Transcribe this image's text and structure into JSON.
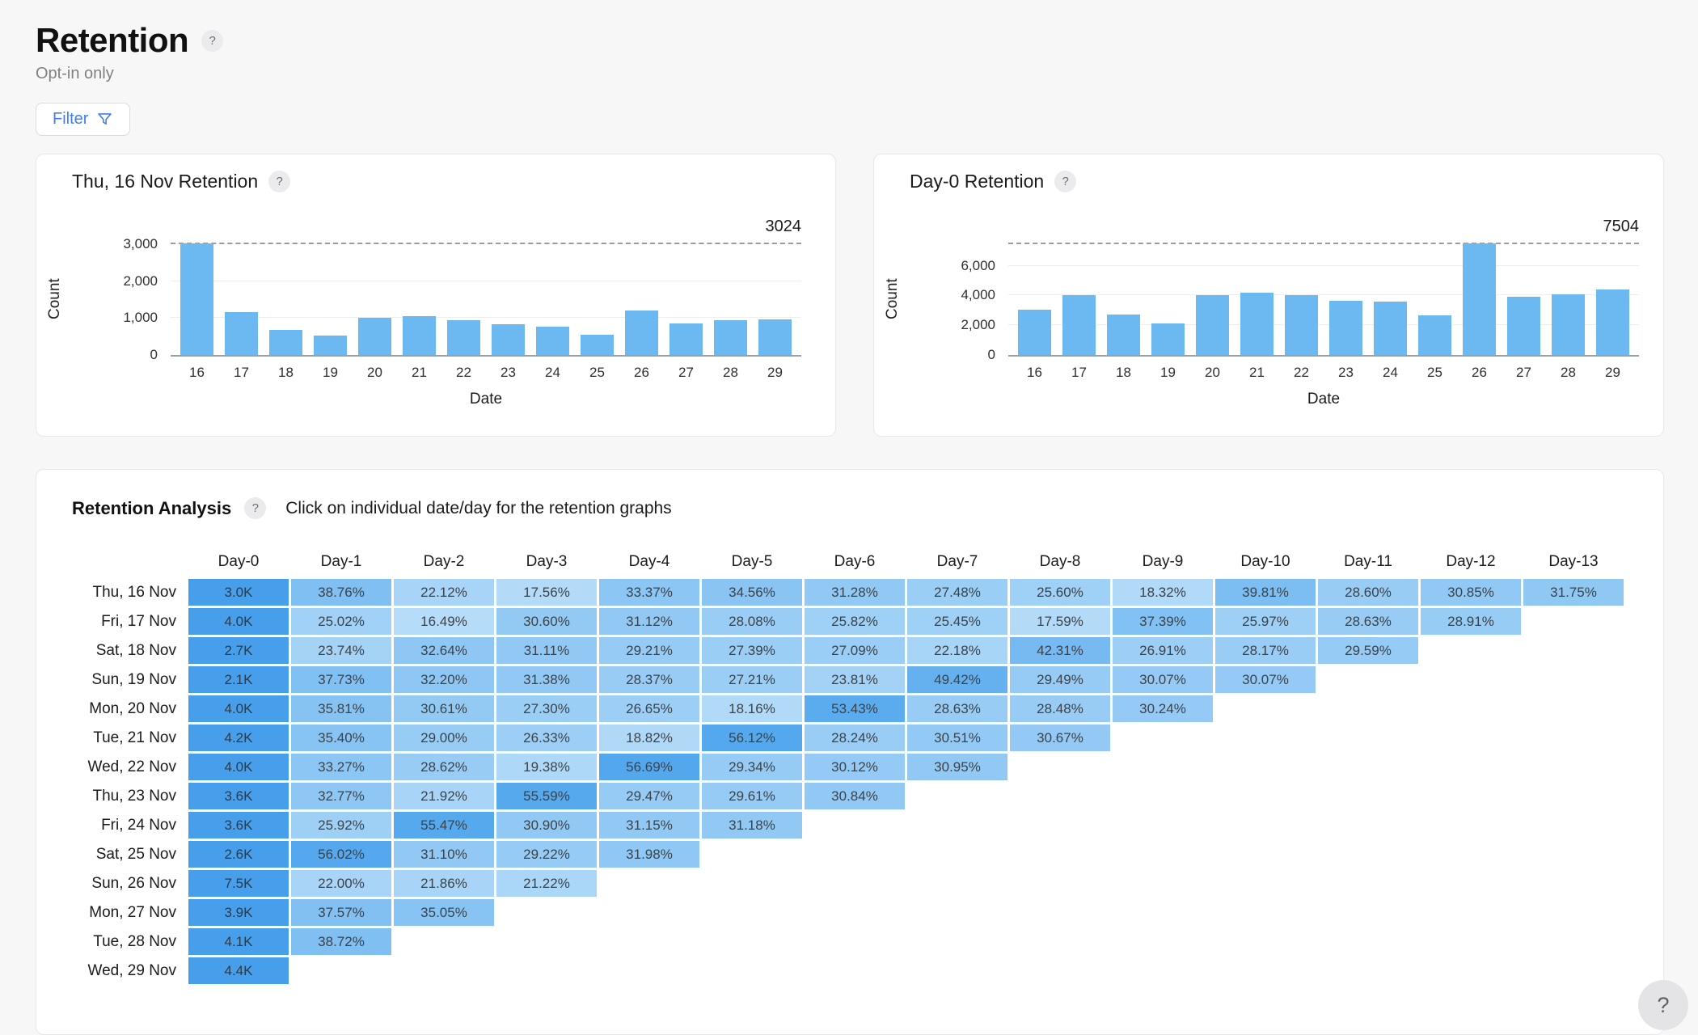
{
  "page": {
    "title": "Retention",
    "subtitle": "Opt-in only",
    "filter_label": "Filter",
    "help_glyph": "?"
  },
  "colors": {
    "accent_blue": "#3F7EF5",
    "bar_blue": "#6CB9F1",
    "day0_cell_blue": "#479EEA",
    "cell_low": "#B9DEF9",
    "cell_high": "#4BA3EC",
    "annotation_line": "#9C9CA0"
  },
  "chart_data": [
    {
      "type": "bar",
      "title": "Thu, 16 Nov Retention",
      "xlabel": "Date",
      "ylabel": "Count",
      "categories": [
        "16",
        "17",
        "18",
        "19",
        "20",
        "21",
        "22",
        "23",
        "24",
        "25",
        "26",
        "27",
        "28",
        "29"
      ],
      "values": [
        3024,
        1172,
        669,
        531,
        1009,
        1045,
        946,
        831,
        774,
        554,
        1204,
        865,
        933,
        960
      ],
      "yticks": [
        {
          "v": 0,
          "label": "0"
        },
        {
          "v": 1000,
          "label": "1,000"
        },
        {
          "v": 2000,
          "label": "2,000"
        },
        {
          "v": 3000,
          "label": "3,000"
        }
      ],
      "ylim": [
        0,
        3024
      ],
      "annotation_value": 3024,
      "annotation_label": "3024",
      "grid": true,
      "legend": false
    },
    {
      "type": "bar",
      "title": "Day-0 Retention",
      "xlabel": "Date",
      "ylabel": "Count",
      "categories": [
        "16",
        "17",
        "18",
        "19",
        "20",
        "21",
        "22",
        "23",
        "24",
        "25",
        "26",
        "27",
        "28",
        "29"
      ],
      "values": [
        3024,
        4030,
        2720,
        2130,
        4050,
        4190,
        4000,
        3650,
        3580,
        2650,
        7504,
        3900,
        4080,
        4400
      ],
      "yticks": [
        {
          "v": 0,
          "label": "0"
        },
        {
          "v": 2000,
          "label": "2,000"
        },
        {
          "v": 4000,
          "label": "4,000"
        },
        {
          "v": 6000,
          "label": "6,000"
        }
      ],
      "ylim": [
        0,
        7504
      ],
      "annotation_value": 7504,
      "annotation_label": "7504",
      "grid": true,
      "legend": false
    },
    {
      "type": "heatmap",
      "title": "Retention Analysis",
      "instruction": "Click on individual date/day for the retention graphs",
      "col_headers": [
        "Day-0",
        "Day-1",
        "Day-2",
        "Day-3",
        "Day-4",
        "Day-5",
        "Day-6",
        "Day-7",
        "Day-8",
        "Day-9",
        "Day-10",
        "Day-11",
        "Day-12",
        "Day-13"
      ],
      "rows": [
        {
          "label": "Thu, 16 Nov",
          "day0": "3.0K",
          "pcts": [
            38.76,
            22.12,
            17.56,
            33.37,
            34.56,
            31.28,
            27.48,
            25.6,
            18.32,
            39.81,
            28.6,
            30.85,
            31.75
          ]
        },
        {
          "label": "Fri, 17 Nov",
          "day0": "4.0K",
          "pcts": [
            25.02,
            16.49,
            30.6,
            31.12,
            28.08,
            25.82,
            25.45,
            17.59,
            37.39,
            25.97,
            28.63,
            28.91
          ]
        },
        {
          "label": "Sat, 18 Nov",
          "day0": "2.7K",
          "pcts": [
            23.74,
            32.64,
            31.11,
            29.21,
            27.39,
            27.09,
            22.18,
            42.31,
            26.91,
            28.17,
            29.59
          ]
        },
        {
          "label": "Sun, 19 Nov",
          "day0": "2.1K",
          "pcts": [
            37.73,
            32.2,
            31.38,
            28.37,
            27.21,
            23.81,
            49.42,
            29.49,
            30.07,
            30.07
          ]
        },
        {
          "label": "Mon, 20 Nov",
          "day0": "4.0K",
          "pcts": [
            35.81,
            30.61,
            27.3,
            26.65,
            18.16,
            53.43,
            28.63,
            28.48,
            30.24
          ]
        },
        {
          "label": "Tue, 21 Nov",
          "day0": "4.2K",
          "pcts": [
            35.4,
            29.0,
            26.33,
            18.82,
            56.12,
            28.24,
            30.51,
            30.67
          ]
        },
        {
          "label": "Wed, 22 Nov",
          "day0": "4.0K",
          "pcts": [
            33.27,
            28.62,
            19.38,
            56.69,
            29.34,
            30.12,
            30.95
          ]
        },
        {
          "label": "Thu, 23 Nov",
          "day0": "3.6K",
          "pcts": [
            32.77,
            21.92,
            55.59,
            29.47,
            29.61,
            30.84
          ]
        },
        {
          "label": "Fri, 24 Nov",
          "day0": "3.6K",
          "pcts": [
            25.92,
            55.47,
            30.9,
            31.15,
            31.18
          ]
        },
        {
          "label": "Sat, 25 Nov",
          "day0": "2.6K",
          "pcts": [
            56.02,
            31.1,
            29.22,
            31.98
          ]
        },
        {
          "label": "Sun, 26 Nov",
          "day0": "7.5K",
          "pcts": [
            22.0,
            21.86,
            21.22
          ]
        },
        {
          "label": "Mon, 27 Nov",
          "day0": "3.9K",
          "pcts": [
            37.57,
            35.05
          ]
        },
        {
          "label": "Tue, 28 Nov",
          "day0": "4.1K",
          "pcts": [
            38.72
          ]
        },
        {
          "label": "Wed, 29 Nov",
          "day0": "4.4K",
          "pcts": []
        }
      ]
    }
  ]
}
